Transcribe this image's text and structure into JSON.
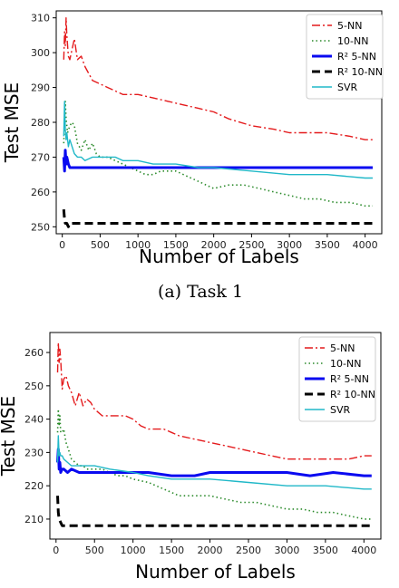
{
  "chart_data": [
    {
      "type": "line",
      "caption": "(a) Task 1",
      "xlabel": "Number of Labels",
      "ylabel": "Test MSE",
      "xlim": [
        -80,
        4220
      ],
      "ylim": [
        248,
        312
      ],
      "xticks": [
        0,
        500,
        1000,
        1500,
        2000,
        2500,
        3000,
        3500,
        4000
      ],
      "yticks": [
        250,
        260,
        270,
        280,
        290,
        300,
        310
      ],
      "grid": false,
      "legend": "top-right",
      "series": [
        {
          "name": "5-NN",
          "color": "#e41a1c",
          "style": "dashdot",
          "width": 1.4,
          "x": [
            20,
            30,
            40,
            50,
            60,
            80,
            100,
            130,
            160,
            200,
            250,
            300,
            400,
            500,
            600,
            700,
            800,
            900,
            1000,
            1200,
            1400,
            1600,
            1800,
            2000,
            2200,
            2500,
            2800,
            3000,
            3200,
            3500,
            3800,
            4000,
            4100
          ],
          "y": [
            298,
            306,
            302,
            310,
            305,
            299,
            298,
            301,
            304,
            298,
            299,
            296,
            292,
            291,
            290,
            289,
            288,
            288,
            288,
            287,
            286,
            285,
            284,
            283,
            281,
            279,
            278,
            277,
            277,
            277,
            276,
            275,
            275
          ]
        },
        {
          "name": "10-NN",
          "color": "#2a8a2a",
          "style": "dotted",
          "width": 1.6,
          "x": [
            20,
            30,
            40,
            50,
            70,
            100,
            130,
            160,
            200,
            250,
            300,
            350,
            400,
            450,
            500,
            600,
            700,
            800,
            900,
            1000,
            1100,
            1200,
            1300,
            1400,
            1500,
            1600,
            1700,
            1800,
            1900,
            2000,
            2200,
            2400,
            2600,
            2800,
            3000,
            3200,
            3400,
            3600,
            3800,
            4000,
            4100
          ],
          "y": [
            274,
            280,
            286,
            281,
            277,
            279,
            280,
            279,
            274,
            272,
            275,
            272,
            274,
            271,
            270,
            270,
            269,
            268,
            267,
            266,
            265,
            265,
            266,
            266,
            266,
            265,
            264,
            263,
            262,
            261,
            262,
            262,
            261,
            260,
            259,
            258,
            258,
            257,
            257,
            256,
            256
          ]
        },
        {
          "name": "R² 5-NN",
          "color": "#0a0af0",
          "style": "solid",
          "width": 3,
          "x": [
            20,
            30,
            40,
            50,
            60,
            80,
            100,
            150,
            200,
            300,
            400,
            600,
            800,
            1000,
            1500,
            2000,
            2500,
            3000,
            3500,
            4000,
            4100
          ],
          "y": [
            270,
            266,
            272,
            268,
            270,
            268,
            267,
            267,
            267,
            267,
            267,
            267,
            267,
            267,
            267,
            267,
            267,
            267,
            267,
            267,
            267
          ]
        },
        {
          "name": "R² 10-NN",
          "color": "#000000",
          "style": "dashed",
          "width": 3,
          "x": [
            20,
            30,
            40,
            60,
            80,
            100,
            150,
            200,
            300,
            500,
            1000,
            1500,
            2000,
            2500,
            3000,
            3500,
            4000,
            4100
          ],
          "y": [
            255,
            252,
            251,
            251,
            250,
            251,
            251,
            251,
            251,
            251,
            251,
            251,
            251,
            251,
            251,
            251,
            251,
            251
          ]
        },
        {
          "name": "SVR",
          "color": "#20b8c8",
          "style": "solid",
          "width": 1.4,
          "x": [
            20,
            30,
            40,
            50,
            60,
            80,
            100,
            130,
            160,
            200,
            250,
            300,
            400,
            500,
            600,
            700,
            800,
            900,
            1000,
            1200,
            1500,
            1800,
            2000,
            2500,
            3000,
            3500,
            4000,
            4100
          ],
          "y": [
            276,
            286,
            278,
            275,
            277,
            273,
            275,
            273,
            271,
            270,
            270,
            269,
            270,
            270,
            270,
            270,
            269,
            269,
            269,
            268,
            268,
            267,
            267,
            266,
            265,
            265,
            264,
            264
          ]
        }
      ]
    },
    {
      "type": "line",
      "xlabel": "Number of Labels",
      "ylabel": "Test MSE",
      "xlim": [
        -80,
        4220
      ],
      "ylim": [
        204,
        266
      ],
      "xticks": [
        0,
        500,
        1000,
        1500,
        2000,
        2500,
        3000,
        3500,
        4000
      ],
      "yticks": [
        210,
        220,
        230,
        240,
        250,
        260
      ],
      "grid": false,
      "legend": "top-right",
      "series": [
        {
          "name": "5-NN",
          "color": "#e41a1c",
          "style": "dashdot",
          "width": 1.4,
          "x": [
            20,
            30,
            40,
            50,
            60,
            80,
            100,
            130,
            160,
            200,
            250,
            300,
            350,
            400,
            450,
            500,
            600,
            700,
            800,
            900,
            1000,
            1100,
            1200,
            1300,
            1400,
            1500,
            1600,
            1800,
            2000,
            2200,
            2400,
            2600,
            2800,
            3000,
            3200,
            3400,
            3600,
            3800,
            4000,
            4100
          ],
          "y": [
            254,
            263,
            257,
            261,
            258,
            249,
            252,
            253,
            250,
            248,
            244,
            248,
            244,
            246,
            245,
            243,
            241,
            241,
            241,
            241,
            240,
            238,
            237,
            237,
            237,
            236,
            235,
            234,
            233,
            232,
            231,
            230,
            229,
            228,
            228,
            228,
            228,
            228,
            229,
            229
          ]
        },
        {
          "name": "10-NN",
          "color": "#2a8a2a",
          "style": "dotted",
          "width": 1.6,
          "x": [
            20,
            30,
            40,
            50,
            60,
            80,
            100,
            130,
            160,
            200,
            250,
            300,
            350,
            400,
            500,
            600,
            700,
            800,
            900,
            1000,
            1200,
            1400,
            1500,
            1600,
            1800,
            2000,
            2200,
            2400,
            2600,
            2800,
            3000,
            3200,
            3400,
            3600,
            3800,
            4000,
            4100
          ],
          "y": [
            236,
            243,
            238,
            241,
            236,
            236,
            237,
            233,
            231,
            228,
            227,
            226,
            226,
            225,
            225,
            225,
            224,
            223,
            223,
            222,
            221,
            219,
            218,
            217,
            217,
            217,
            216,
            215,
            215,
            214,
            213,
            213,
            212,
            212,
            211,
            210,
            210
          ]
        },
        {
          "name": "R² 5-NN",
          "color": "#0a0af0",
          "style": "solid",
          "width": 3,
          "x": [
            20,
            30,
            40,
            50,
            60,
            80,
            100,
            150,
            200,
            300,
            400,
            600,
            800,
            1000,
            1200,
            1500,
            1800,
            2000,
            2500,
            3000,
            3300,
            3600,
            4000,
            4100
          ],
          "y": [
            227,
            231,
            225,
            227,
            224,
            225,
            225,
            224,
            225,
            224,
            224,
            224,
            224,
            224,
            224,
            223,
            223,
            224,
            224,
            224,
            223,
            224,
            223,
            223
          ]
        },
        {
          "name": "R² 10-NN",
          "color": "#000000",
          "style": "dashed",
          "width": 3,
          "x": [
            20,
            30,
            40,
            60,
            80,
            100,
            150,
            200,
            300,
            500,
            1000,
            1500,
            2000,
            2500,
            3000,
            3500,
            4000,
            4100
          ],
          "y": [
            217,
            212,
            210,
            209,
            208,
            208,
            208,
            208,
            208,
            208,
            208,
            208,
            208,
            208,
            208,
            208,
            208,
            208
          ]
        },
        {
          "name": "SVR",
          "color": "#20b8c8",
          "style": "solid",
          "width": 1.4,
          "x": [
            20,
            30,
            40,
            50,
            60,
            80,
            100,
            150,
            200,
            300,
            400,
            500,
            700,
            1000,
            1200,
            1500,
            1800,
            2000,
            2500,
            3000,
            3500,
            4000,
            4100
          ],
          "y": [
            227,
            235,
            229,
            230,
            229,
            229,
            228,
            227,
            226,
            226,
            226,
            226,
            225,
            224,
            223,
            222,
            222,
            222,
            221,
            220,
            220,
            219,
            219
          ]
        }
      ]
    }
  ]
}
